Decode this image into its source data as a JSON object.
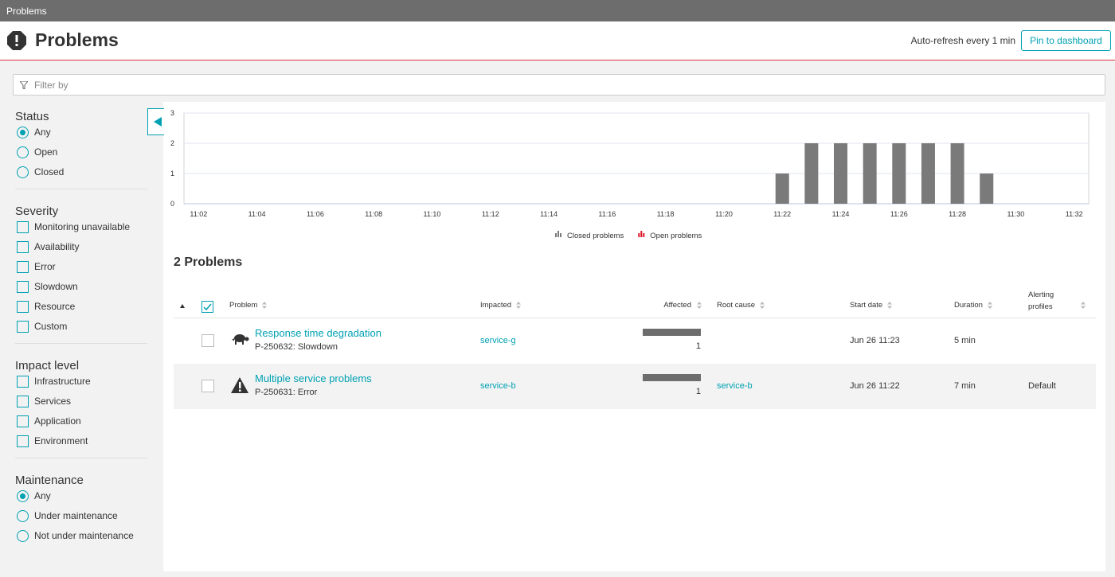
{
  "tab": "Problems",
  "header": {
    "title": "Problems",
    "auto_refresh": "Auto-refresh every 1 min",
    "pin": "Pin to dashboard"
  },
  "filter": {
    "placeholder": "Filter by"
  },
  "sidebar": [
    {
      "title": "Status",
      "control": "radio",
      "options": [
        {
          "label": "Any",
          "selected": true
        },
        {
          "label": "Open"
        },
        {
          "label": "Closed"
        }
      ]
    },
    {
      "title": "Severity",
      "control": "checkbox",
      "options": [
        {
          "label": "Monitoring unavailable"
        },
        {
          "label": "Availability"
        },
        {
          "label": "Error"
        },
        {
          "label": "Slowdown"
        },
        {
          "label": "Resource"
        },
        {
          "label": "Custom"
        }
      ]
    },
    {
      "title": "Impact level",
      "control": "checkbox",
      "options": [
        {
          "label": "Infrastructure"
        },
        {
          "label": "Services"
        },
        {
          "label": "Application"
        },
        {
          "label": "Environment"
        }
      ]
    },
    {
      "title": "Maintenance",
      "control": "radio",
      "options": [
        {
          "label": "Any",
          "selected": true
        },
        {
          "label": "Under maintenance"
        },
        {
          "label": "Not under maintenance"
        }
      ]
    }
  ],
  "chart_data": {
    "type": "bar",
    "stacked": true,
    "categories": [
      "11:02",
      null,
      "11:04",
      null,
      "11:06",
      null,
      "11:08",
      null,
      "11:10",
      null,
      "11:12",
      null,
      "11:14",
      null,
      "11:16",
      null,
      "11:18",
      null,
      "11:20",
      null,
      "11:22",
      null,
      "11:24",
      null,
      "11:26",
      null,
      "11:28",
      null,
      "11:30",
      null,
      "11:32"
    ],
    "series": [
      {
        "name": "Closed problems",
        "color": "#7a7a7a",
        "values": [
          0,
          0,
          0,
          0,
          0,
          0,
          0,
          0,
          0,
          0,
          0,
          0,
          0,
          0,
          0,
          0,
          0,
          0,
          0,
          0,
          1,
          2,
          2,
          2,
          2,
          2,
          2,
          1,
          0,
          0,
          0
        ]
      },
      {
        "name": "Open problems",
        "color": "#dc172a",
        "values": [
          0,
          0,
          0,
          0,
          0,
          0,
          0,
          0,
          0,
          0,
          0,
          0,
          0,
          0,
          0,
          0,
          0,
          0,
          0,
          0,
          0,
          0,
          0,
          0,
          0,
          0,
          0,
          0,
          0,
          0,
          0
        ]
      }
    ],
    "ylim": [
      0,
      3
    ],
    "yticks": [
      0,
      1,
      2,
      3
    ],
    "grid": true
  },
  "table": {
    "heading": "2 Problems",
    "columns": [
      "Problem",
      "Impacted",
      "Affected",
      "Root cause",
      "Start date",
      "Duration",
      "Alerting profiles"
    ],
    "rows": [
      {
        "icon": "slowdown",
        "name": "Response time degradation",
        "id": "P-250632: Slowdown",
        "impacted": "service-g",
        "affected": 1,
        "start": "Jun 26 11:23",
        "duration": "5 min"
      },
      {
        "icon": "error",
        "name": "Multiple service problems",
        "id": "P-250631: Error",
        "impacted": "service-b",
        "affected": 1,
        "root_cause": "service-b",
        "start": "Jun 26 11:22",
        "duration": "7 min",
        "alerting": "Default"
      }
    ]
  }
}
